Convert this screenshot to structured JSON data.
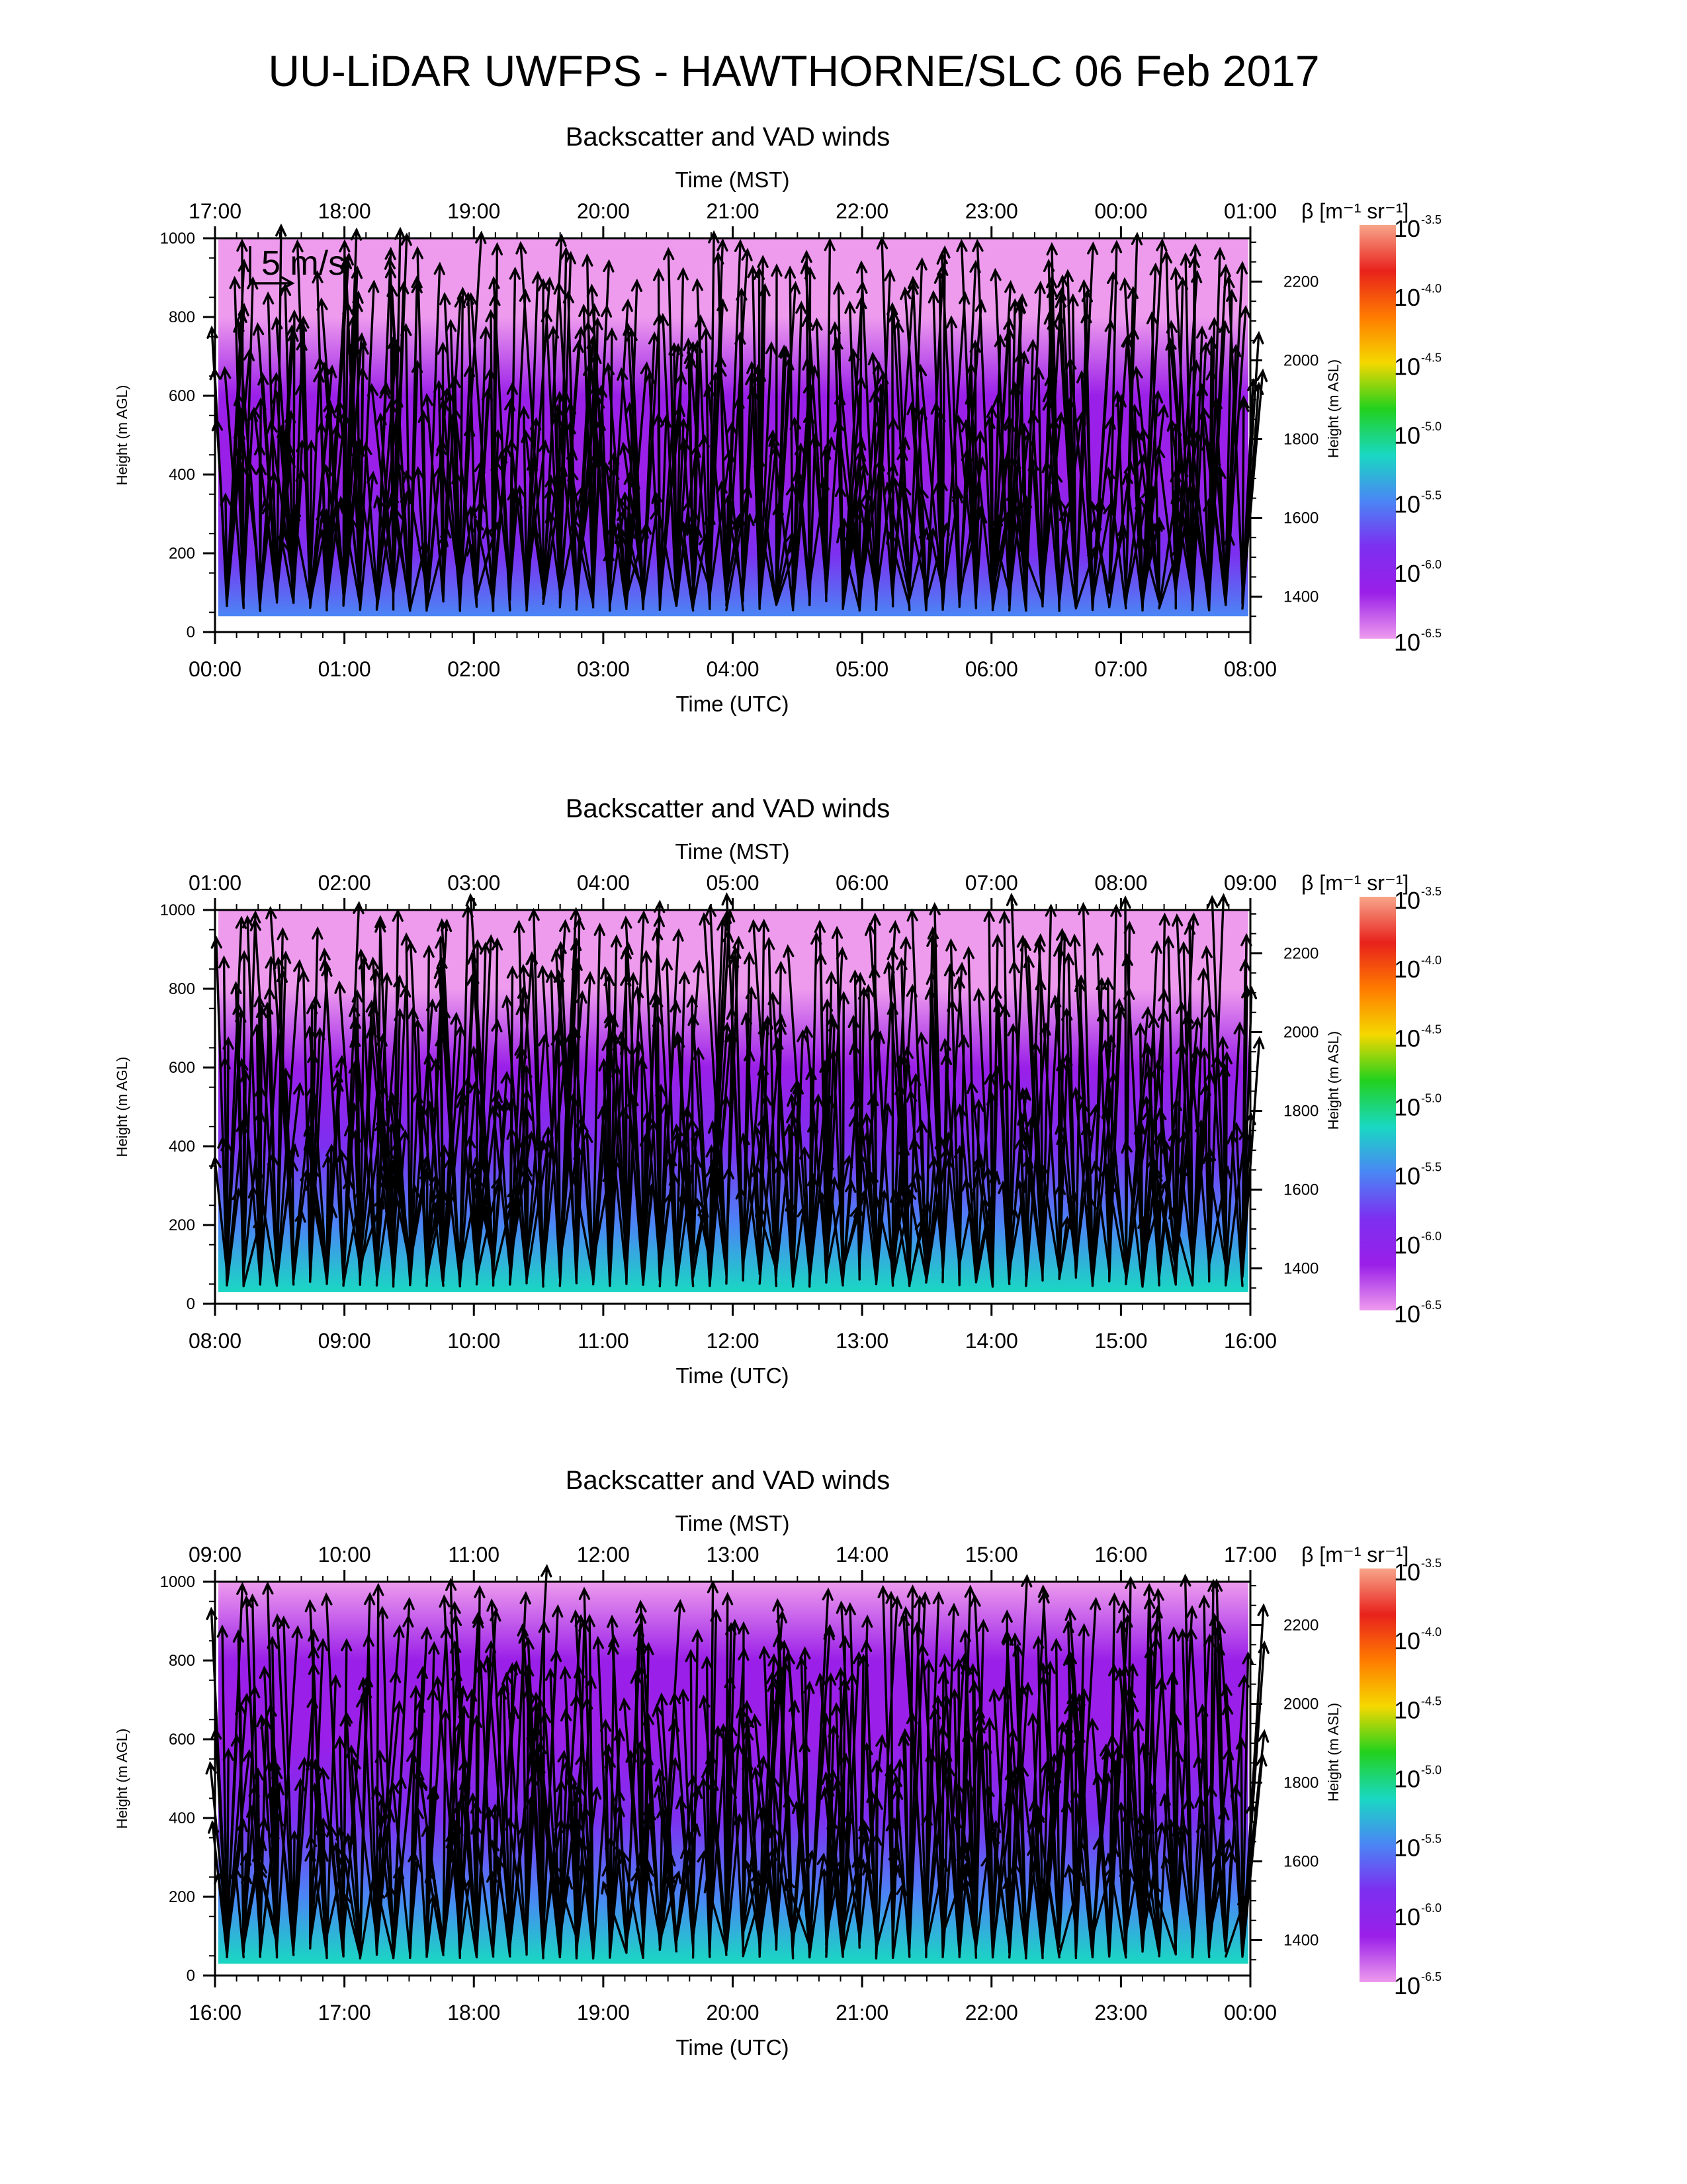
{
  "title": "UU-LiDAR UWFPS - HAWTHORNE/SLC 06 Feb 2017",
  "scale_arrow_label": "5 m/s",
  "colorbar": {
    "label": "β [m⁻¹ sr⁻¹]",
    "base": "10",
    "exponents": [
      "-3.5",
      "-4.0",
      "-4.5",
      "-5.0",
      "-5.5",
      "-6.0",
      "-6.5"
    ],
    "colors": [
      "#f7a58a",
      "#e8221c",
      "#ff7b00",
      "#f5d800",
      "#22d11d",
      "#19d8c2",
      "#4a86f5",
      "#7d2ff0",
      "#9a1fe8",
      "#ee9bee"
    ]
  },
  "chart_data": [
    {
      "type": "heatmap",
      "title": "Backscatter and VAD winds",
      "top_axis_title": "Time (MST)",
      "top_tick_labels": [
        "17:00",
        "18:00",
        "19:00",
        "20:00",
        "21:00",
        "22:00",
        "23:00",
        "00:00",
        "01:00"
      ],
      "bottom_axis_title": "Time (UTC)",
      "bottom_tick_labels": [
        "00:00",
        "01:00",
        "02:00",
        "03:00",
        "04:00",
        "05:00",
        "06:00",
        "07:00",
        "08:00"
      ],
      "ylabel": "Height (m AGL)",
      "y_ticks": [
        "0",
        "200",
        "400",
        "600",
        "800",
        "1000"
      ],
      "ylim": [
        0,
        1000
      ],
      "y2label": "Height (m ASL)",
      "y2_ticks": [
        "1400",
        "1600",
        "1800",
        "2000",
        "2200"
      ],
      "y2lim": [
        1310,
        2310
      ],
      "profile_height_range": [
        40,
        1000
      ],
      "backscatter_profile": {
        "height_m": [
          40,
          200,
          400,
          600,
          800,
          1000
        ],
        "log10_beta": [
          -5.4,
          -5.7,
          -6.0,
          -6.3,
          -6.4,
          -6.5
        ]
      }
    },
    {
      "type": "heatmap",
      "title": "Backscatter and VAD winds",
      "top_axis_title": "Time (MST)",
      "top_tick_labels": [
        "01:00",
        "02:00",
        "03:00",
        "04:00",
        "05:00",
        "06:00",
        "07:00",
        "08:00",
        "09:00"
      ],
      "bottom_axis_title": "Time (UTC)",
      "bottom_tick_labels": [
        "08:00",
        "09:00",
        "10:00",
        "11:00",
        "12:00",
        "13:00",
        "14:00",
        "15:00",
        "16:00"
      ],
      "ylabel": "Height (m AGL)",
      "y_ticks": [
        "0",
        "200",
        "400",
        "600",
        "800",
        "1000"
      ],
      "ylim": [
        0,
        1000
      ],
      "y2label": "Height (m ASL)",
      "y2_ticks": [
        "1400",
        "1600",
        "1800",
        "2000",
        "2200"
      ],
      "y2lim": [
        1310,
        2310
      ],
      "profile_height_range": [
        30,
        1000
      ],
      "backscatter_profile": {
        "height_m": [
          30,
          200,
          400,
          600,
          800,
          1000
        ],
        "log10_beta": [
          -5.3,
          -5.6,
          -5.9,
          -6.2,
          -6.4,
          -6.5
        ]
      }
    },
    {
      "type": "heatmap",
      "title": "Backscatter and VAD winds",
      "top_axis_title": "Time (MST)",
      "top_tick_labels": [
        "09:00",
        "10:00",
        "11:00",
        "12:00",
        "13:00",
        "14:00",
        "15:00",
        "16:00",
        "17:00"
      ],
      "bottom_axis_title": "Time (UTC)",
      "bottom_tick_labels": [
        "16:00",
        "17:00",
        "18:00",
        "19:00",
        "20:00",
        "21:00",
        "22:00",
        "23:00",
        "00:00"
      ],
      "ylabel": "Height (m AGL)",
      "y_ticks": [
        "0",
        "200",
        "400",
        "600",
        "800",
        "1000"
      ],
      "ylim": [
        0,
        1000
      ],
      "y2label": "Height (m ASL)",
      "y2_ticks": [
        "1400",
        "1600",
        "1800",
        "2000",
        "2200"
      ],
      "y2lim": [
        1310,
        2310
      ],
      "profile_height_range": [
        30,
        1000
      ],
      "backscatter_profile": {
        "height_m": [
          30,
          200,
          400,
          600,
          800,
          1000
        ],
        "log10_beta": [
          -5.1,
          -5.4,
          -5.7,
          -6.0,
          -6.3,
          -6.5
        ]
      }
    }
  ]
}
